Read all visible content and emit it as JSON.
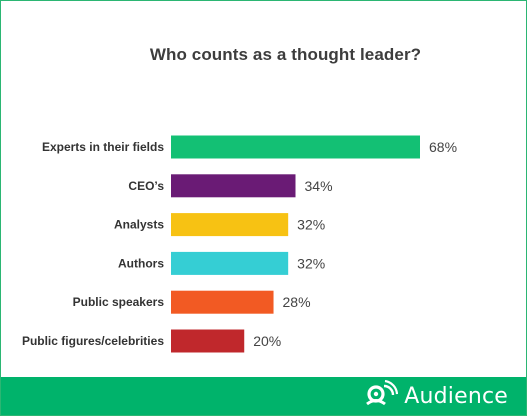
{
  "chart_data": {
    "type": "bar",
    "orientation": "horizontal",
    "title": "Who counts as a thought leader?",
    "categories": [
      "Experts in their fields",
      "CEO’s",
      "Analysts",
      "Authors",
      "Public speakers",
      "Public figures/celebrities"
    ],
    "values": [
      68,
      34,
      32,
      32,
      28,
      20
    ],
    "value_labels": [
      "68%",
      "34%",
      "32%",
      "32%",
      "28%",
      "20%"
    ],
    "colors": [
      "#13c074",
      "#6a1b75",
      "#f7c213",
      "#35ced4",
      "#f25a23",
      "#c0282c"
    ],
    "xlim": [
      0,
      68
    ],
    "grid": false,
    "legend": "none"
  },
  "footer": {
    "brand_name": "Audience",
    "background_color": "#00b36b",
    "logo_icon": "audience-logo-icon"
  }
}
